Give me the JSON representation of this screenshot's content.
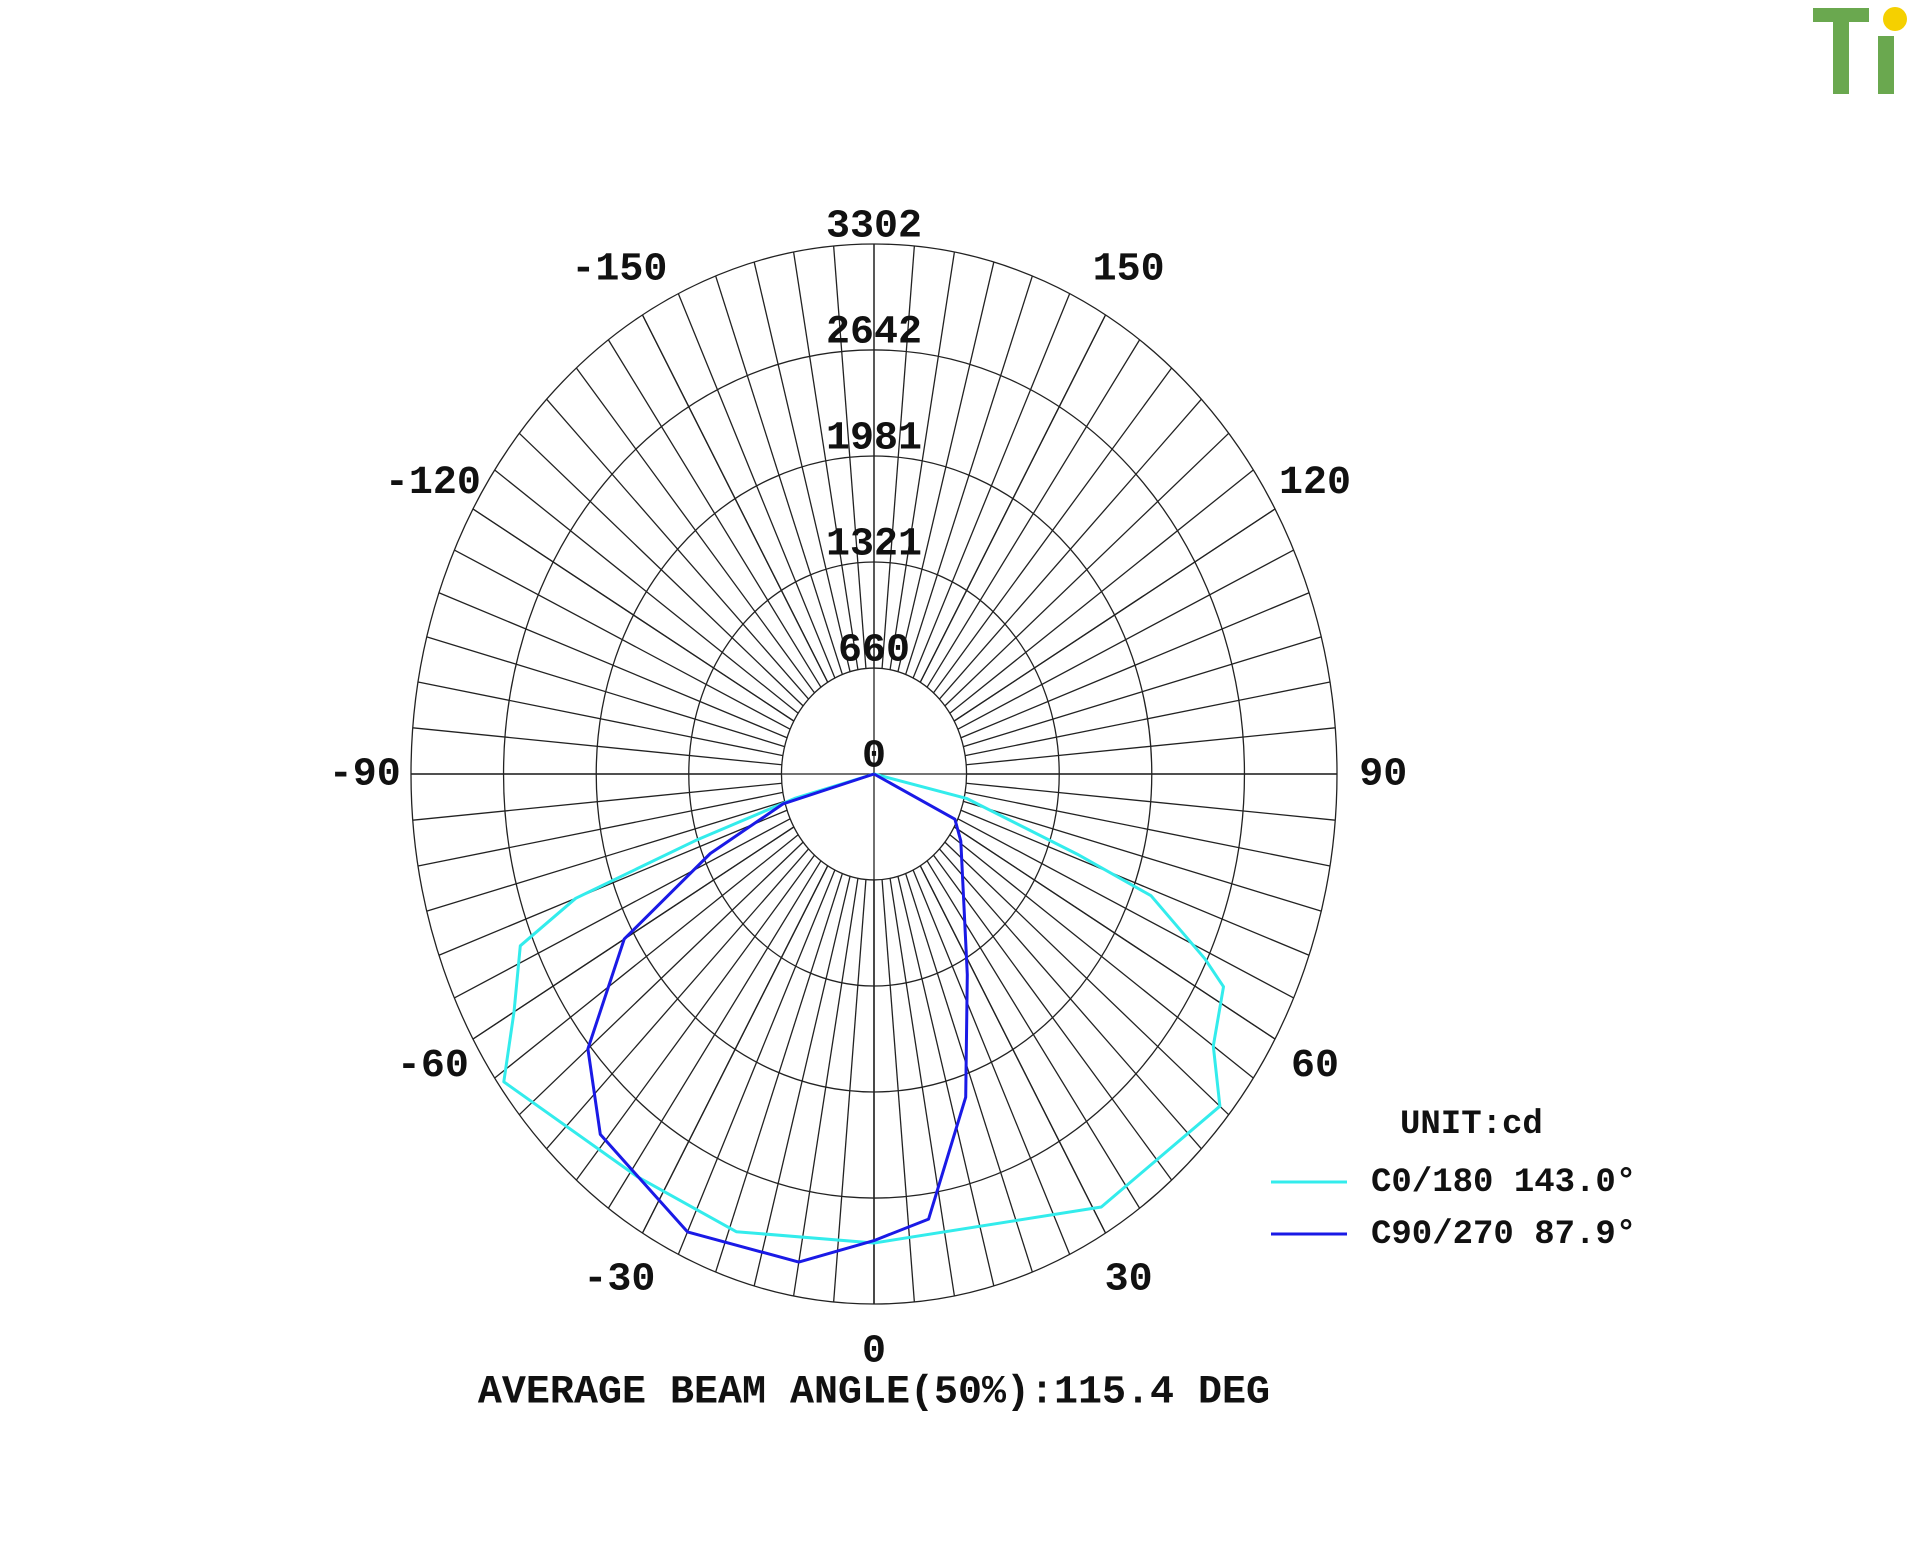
{
  "chart_data": {
    "type": "polar",
    "xlim": [
      -180,
      180
    ],
    "xticks": [
      -150,
      -120,
      -90,
      -60,
      -30,
      0,
      30,
      60,
      90,
      120,
      150
    ],
    "ylim": [
      0,
      3302
    ],
    "yticks": [
      0,
      660,
      1321,
      1981,
      2642,
      3302
    ],
    "grid": true,
    "legend_title": "UNIT:cd",
    "legend_position": "lower right",
    "annotation": "AVERAGE BEAM ANGLE(50%):115.4 DEG",
    "series": [
      {
        "name": "C0/180 143.0°",
        "color": "#33ecec",
        "x": [
          -90,
          -75,
          -72,
          -70,
          -67,
          -60,
          -54,
          -34,
          -19,
          0,
          31,
          50,
          55,
          62,
          64,
          69,
          71,
          77,
          90
        ],
        "values": [
          0,
          578,
          1325,
          2264,
          2740,
          2965,
          3263,
          3024,
          3016,
          2922,
          3147,
          3220,
          2954,
          2823,
          2626,
          2116,
          1532,
          681,
          0
        ]
      },
      {
        "name": "C90/270 87.9°",
        "color": "#1a1ae6",
        "x": [
          -90,
          -74,
          -67,
          -60,
          -50,
          -41,
          -25,
          -10,
          0,
          8,
          18,
          28,
          56,
          64,
          90
        ],
        "values": [
          0,
          674,
          1268,
          2057,
          2664,
          2975,
          3148,
          3088,
          2907,
          2800,
          2117,
          1417,
          747,
          642,
          0
        ]
      }
    ]
  }
}
